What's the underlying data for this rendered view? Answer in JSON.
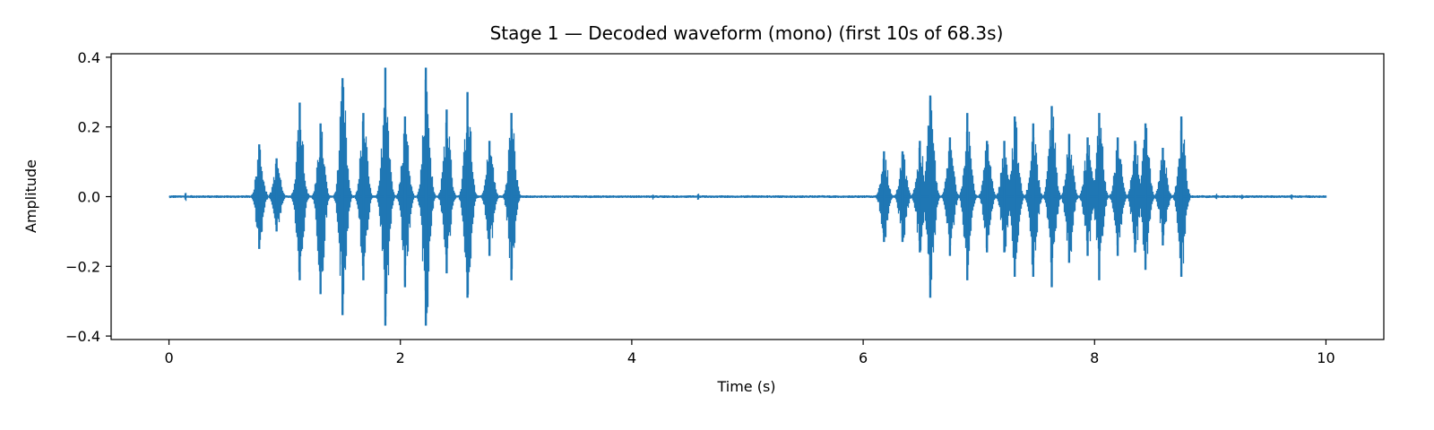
{
  "chart_data": {
    "type": "line",
    "title": "Stage 1 — Decoded waveform (mono) (first 10s of 68.3s)",
    "xlabel": "Time (s)",
    "ylabel": "Amplitude",
    "xlim": [
      -0.5,
      10.5
    ],
    "ylim": [
      -0.41,
      0.41
    ],
    "xticks": [
      0,
      2,
      4,
      6,
      8,
      10
    ],
    "xtick_labels": [
      "0",
      "2",
      "4",
      "6",
      "8",
      "10"
    ],
    "yticks": [
      -0.4,
      -0.2,
      0.0,
      0.2,
      0.4
    ],
    "ytick_labels": [
      "−0.4",
      "−0.2",
      "0.0",
      "0.2",
      "0.4"
    ],
    "grid": false,
    "line_color": "#1f77b4",
    "noise_floor": 0.004,
    "series": [
      {
        "x_range": [
          0,
          10
        ],
        "bursts": [
          {
            "t": 0.78,
            "top": 0.15,
            "bottom": -0.15
          },
          {
            "t": 0.93,
            "top": 0.11,
            "bottom": -0.1
          },
          {
            "t": 1.13,
            "top": 0.27,
            "bottom": -0.24
          },
          {
            "t": 1.31,
            "top": 0.21,
            "bottom": -0.28
          },
          {
            "t": 1.5,
            "top": 0.34,
            "bottom": -0.34
          },
          {
            "t": 1.68,
            "top": 0.24,
            "bottom": -0.24
          },
          {
            "t": 1.87,
            "top": 0.37,
            "bottom": -0.37
          },
          {
            "t": 2.04,
            "top": 0.23,
            "bottom": -0.26
          },
          {
            "t": 2.22,
            "top": 0.37,
            "bottom": -0.37
          },
          {
            "t": 2.4,
            "top": 0.25,
            "bottom": -0.22
          },
          {
            "t": 2.58,
            "top": 0.3,
            "bottom": -0.29
          },
          {
            "t": 2.77,
            "top": 0.16,
            "bottom": -0.17
          },
          {
            "t": 2.96,
            "top": 0.24,
            "bottom": -0.24
          },
          {
            "t": 6.18,
            "top": 0.13,
            "bottom": -0.13
          },
          {
            "t": 6.34,
            "top": 0.13,
            "bottom": -0.13
          },
          {
            "t": 6.49,
            "top": 0.16,
            "bottom": -0.16
          },
          {
            "t": 6.58,
            "top": 0.29,
            "bottom": -0.29
          },
          {
            "t": 6.75,
            "top": 0.17,
            "bottom": -0.17
          },
          {
            "t": 6.9,
            "top": 0.24,
            "bottom": -0.24
          },
          {
            "t": 7.07,
            "top": 0.16,
            "bottom": -0.16
          },
          {
            "t": 7.22,
            "top": 0.16,
            "bottom": -0.16
          },
          {
            "t": 7.31,
            "top": 0.23,
            "bottom": -0.23
          },
          {
            "t": 7.47,
            "top": 0.21,
            "bottom": -0.23
          },
          {
            "t": 7.63,
            "top": 0.26,
            "bottom": -0.26
          },
          {
            "t": 7.78,
            "top": 0.18,
            "bottom": -0.19
          },
          {
            "t": 7.94,
            "top": 0.17,
            "bottom": -0.17
          },
          {
            "t": 8.04,
            "top": 0.24,
            "bottom": -0.24
          },
          {
            "t": 8.2,
            "top": 0.17,
            "bottom": -0.17
          },
          {
            "t": 8.35,
            "top": 0.16,
            "bottom": -0.16
          },
          {
            "t": 8.44,
            "top": 0.21,
            "bottom": -0.21
          },
          {
            "t": 8.59,
            "top": 0.14,
            "bottom": -0.14
          },
          {
            "t": 8.75,
            "top": 0.23,
            "bottom": -0.23
          }
        ],
        "small_blips": [
          {
            "t": 0.14,
            "amp": 0.015
          },
          {
            "t": 2.55,
            "amp": 0.012
          },
          {
            "t": 4.18,
            "amp": 0.01
          },
          {
            "t": 4.57,
            "amp": 0.012
          },
          {
            "t": 9.05,
            "amp": 0.013
          },
          {
            "t": 9.27,
            "amp": 0.01
          },
          {
            "t": 9.7,
            "amp": 0.01
          }
        ]
      }
    ]
  }
}
